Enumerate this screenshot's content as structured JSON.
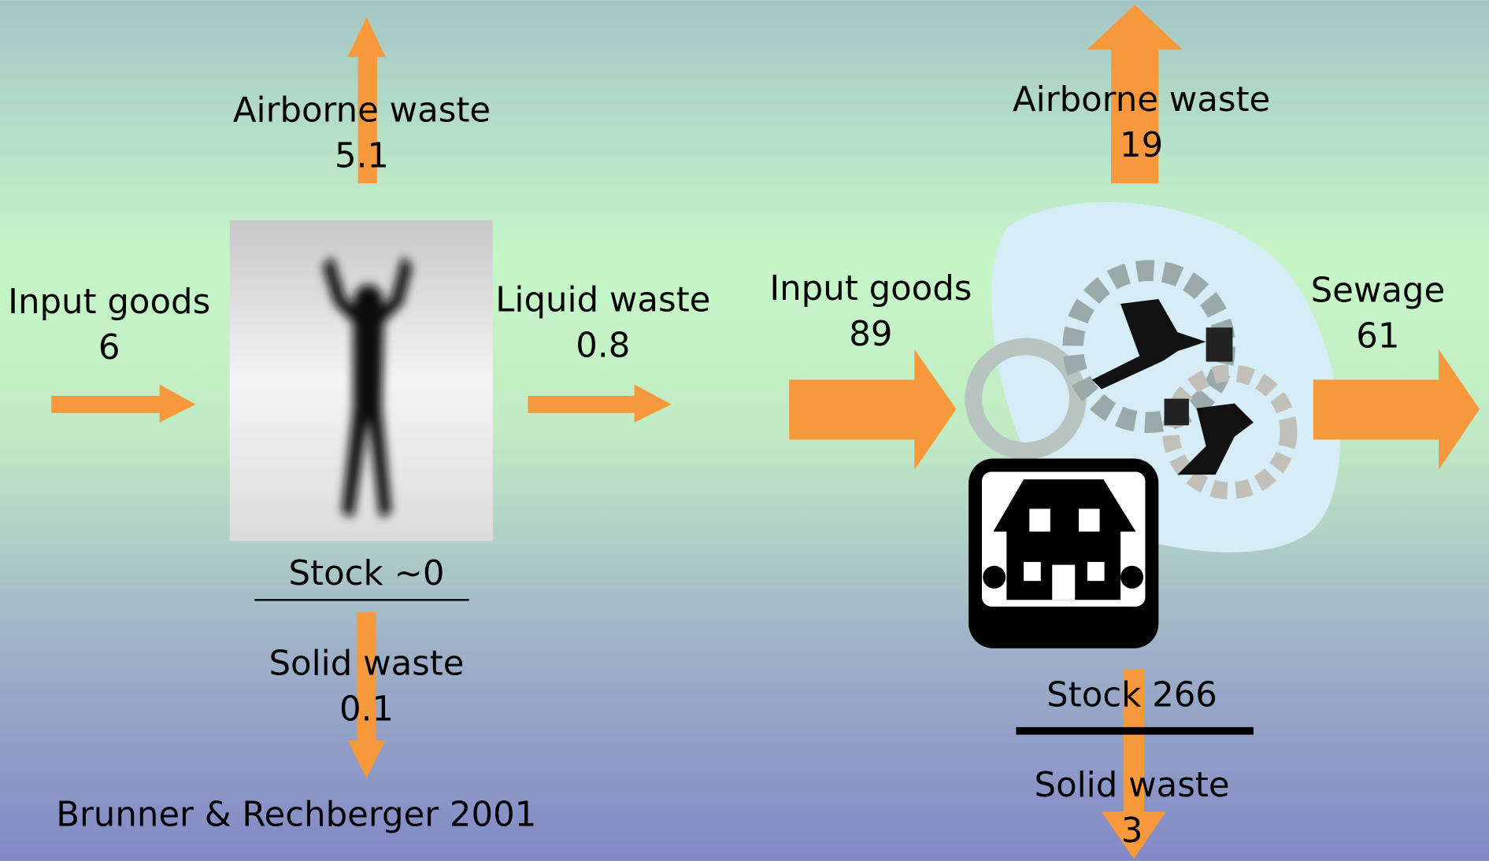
{
  "left": {
    "input": {
      "label": "Input goods",
      "value": 6
    },
    "airborne": {
      "label": "Airborne waste",
      "value": 5.1
    },
    "liquid": {
      "label": "Liquid waste",
      "value": 0.8
    },
    "stock": {
      "label": "Stock",
      "value": "~0"
    },
    "solid": {
      "label": "Solid waste",
      "value": 0.1
    }
  },
  "right": {
    "input": {
      "label": "Input goods",
      "value": 89
    },
    "airborne": {
      "label": "Airborne waste",
      "value": 19
    },
    "sewage": {
      "label": "Sewage",
      "value": 61
    },
    "stock": {
      "label": "Stock",
      "value": 266
    },
    "solid": {
      "label": "Solid waste",
      "value": 3
    }
  },
  "source": "Brunner & Rechberger 2001"
}
